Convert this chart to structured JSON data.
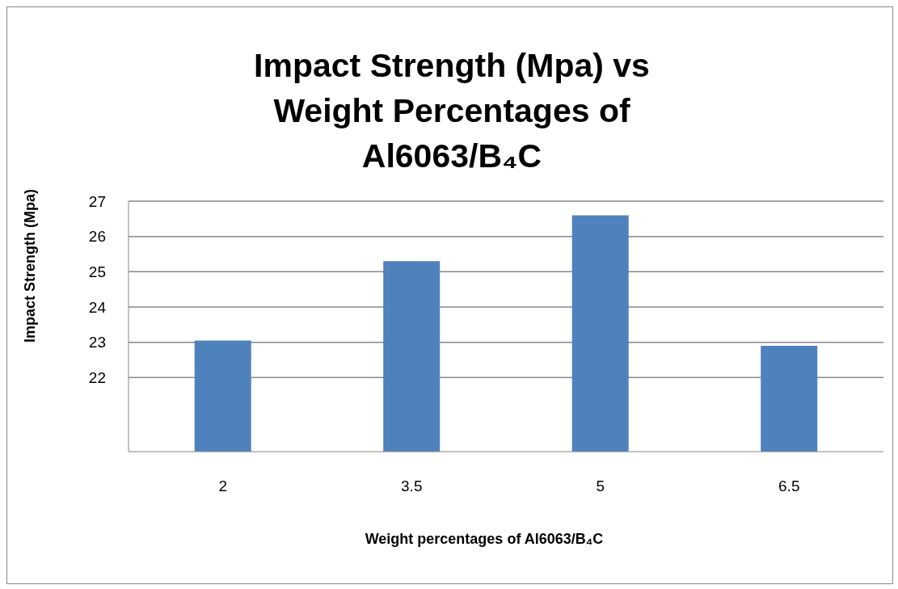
{
  "chart_data": {
    "type": "bar",
    "title": "Impact Strength (Mpa) vs Weight Percentages of Al6063/B₄C",
    "xlabel": "Weight percentages of Al6063/B₄C",
    "ylabel": "Impact Strength (Mpa)",
    "categories": [
      "2",
      "3.5",
      "5",
      "6.5"
    ],
    "values": [
      23.05,
      25.3,
      26.6,
      22.9
    ],
    "color": "#4f81bd",
    "ylim": [
      19.9,
      27
    ],
    "yticks": [
      22,
      23,
      24,
      25,
      26,
      27
    ],
    "grid": "y",
    "legend": false
  }
}
